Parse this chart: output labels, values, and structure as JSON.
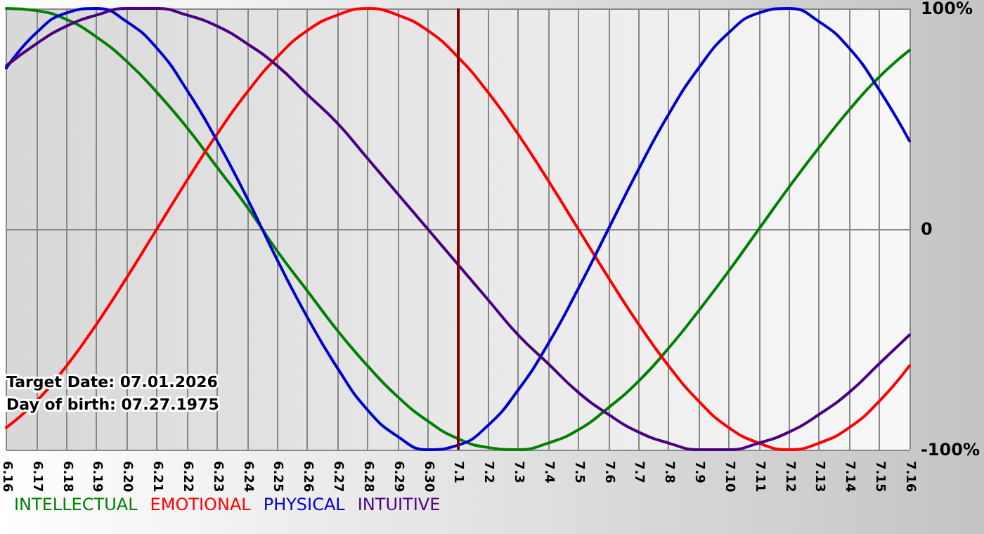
{
  "chart_data": {
    "type": "line",
    "categories": [
      "6.16",
      "6.17",
      "6.18",
      "6.19",
      "6.20",
      "6.21",
      "6.22",
      "6.23",
      "6.24",
      "6.25",
      "6.26",
      "6.27",
      "6.28",
      "6.29",
      "6.30",
      "7.1",
      "7.2",
      "7.3",
      "7.4",
      "7.5",
      "7.6",
      "7.7",
      "7.8",
      "7.9",
      "7.10",
      "7.11",
      "7.12",
      "7.13",
      "7.14",
      "7.15",
      "7.16"
    ],
    "series": [
      {
        "name": "INTELLECTUAL",
        "color": "#008000",
        "values": [
          100,
          99,
          95,
          87,
          76,
          62,
          46,
          28,
          10,
          -10,
          -28,
          -46,
          -62,
          -76,
          -87,
          -95,
          -99,
          -100,
          -97,
          -91,
          -81,
          -69,
          -54,
          -37,
          -19,
          0,
          19,
          37,
          54,
          69,
          81
        ]
      },
      {
        "name": "EMOTIONAL",
        "color": "#ff0000",
        "values": [
          -90,
          -78,
          -62,
          -43,
          -22,
          0,
          22,
          43,
          62,
          78,
          90,
          97,
          100,
          97,
          90,
          78,
          62,
          43,
          22,
          0,
          -22,
          -43,
          -62,
          -78,
          -90,
          -97,
          -100,
          -97,
          -90,
          -78,
          -62
        ]
      },
      {
        "name": "PHYSICAL",
        "color": "#0000cc",
        "values": [
          73,
          89,
          98,
          100,
          94,
          82,
          63,
          40,
          14,
          -14,
          -40,
          -63,
          -82,
          -94,
          -100,
          -98,
          -89,
          -73,
          -52,
          -27,
          0,
          27,
          52,
          73,
          89,
          98,
          100,
          94,
          82,
          63,
          40
        ]
      },
      {
        "name": "INTUITIVE",
        "color": "#4b0082",
        "values": [
          74,
          84,
          92,
          97,
          100,
          100,
          97,
          92,
          84,
          74,
          61,
          48,
          32,
          16,
          0,
          -16,
          -32,
          -48,
          -61,
          -74,
          -84,
          -92,
          -97,
          -100,
          -100,
          -97,
          -92,
          -84,
          -74,
          -61,
          -48
        ]
      }
    ],
    "ylim": [
      -100,
      100
    ],
    "yticks": [
      {
        "value": 100,
        "label": "100%"
      },
      0,
      {
        "value": -100,
        "label": "-100%"
      }
    ],
    "ref_lines": [
      {
        "axis": "x",
        "value": "7.1",
        "color": "#800000"
      }
    ],
    "annotations": [
      "Target Date: 07.01.2026",
      "Day of birth: 07.27.1975"
    ],
    "grid": true,
    "legend": "bottom left",
    "marker": "none",
    "line_style": "solid"
  }
}
